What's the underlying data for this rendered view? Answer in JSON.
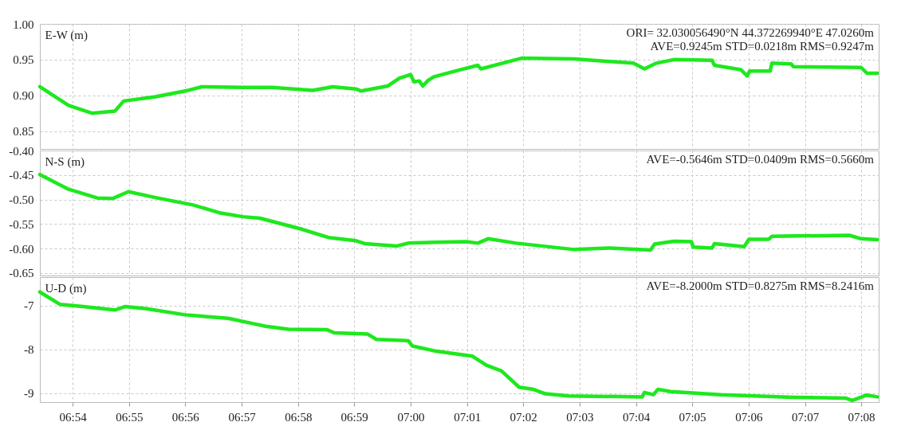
{
  "chart_data": [
    {
      "type": "line",
      "ylabel": "E-W (m)",
      "annotations": [
        "ORI= 32.030056490°N  44.372269940°E 47.0260m",
        "AVE=0.9245m STD=0.0218m RMS=0.9247m"
      ],
      "xlim": [
        6.8903,
        7.1385
      ],
      "xticks": [
        {
          "value": 6.9,
          "label": null
        },
        {
          "value": 6.9167,
          "label": null
        },
        {
          "value": 6.9333,
          "label": null
        },
        {
          "value": 6.95,
          "label": null
        },
        {
          "value": 6.9667,
          "label": null
        },
        {
          "value": 6.9833,
          "label": null
        },
        {
          "value": 7,
          "label": null
        },
        {
          "value": 7.0167,
          "label": null
        },
        {
          "value": 7.0333,
          "label": null
        },
        {
          "value": 7.05,
          "label": null
        },
        {
          "value": 7.0667,
          "label": null
        },
        {
          "value": 7.0833,
          "label": null
        },
        {
          "value": 7.1,
          "label": null
        },
        {
          "value": 7.1167,
          "label": null
        },
        {
          "value": 7.1333,
          "label": null
        }
      ],
      "ylim": [
        0.825,
        1.0
      ],
      "yticks": [
        0.85,
        {
          "value": 0.9,
          "label": "0.90"
        },
        0.95,
        {
          "value": 1.0,
          "label": "1.00"
        }
      ],
      "grid": true,
      "tick_labels": "y",
      "marker": "none",
      "line_style": "solid",
      "x": [
        6.8903,
        6.8988,
        6.9057,
        6.9125,
        6.9151,
        6.9245,
        6.9333,
        6.9382,
        6.9503,
        6.959,
        6.971,
        6.9769,
        6.9838,
        6.9854,
        6.9932,
        6.9967,
        7.0,
        7.001,
        7.0026,
        7.0036,
        7.0052,
        7.0069,
        7.014,
        7.0199,
        7.0208,
        7.0328,
        7.0484,
        7.0659,
        7.0692,
        7.0727,
        7.0779,
        7.0892,
        7.0899,
        7.0977,
        7.0996,
        7.1003,
        7.1064,
        7.1069,
        7.1126,
        7.1133,
        7.1333,
        7.135,
        7.1381
      ],
      "series": [
        {
          "color": "#1ee81e",
          "values": [
            0.912,
            0.886,
            0.875,
            0.878,
            0.892,
            0.898,
            0.906,
            0.912,
            0.911,
            0.911,
            0.907,
            0.912,
            0.909,
            0.906,
            0.913,
            0.924,
            0.929,
            0.919,
            0.92,
            0.913,
            0.921,
            0.926,
            0.935,
            0.942,
            0.937,
            0.952,
            0.951,
            0.945,
            0.937,
            0.945,
            0.95,
            0.949,
            0.942,
            0.936,
            0.927,
            0.934,
            0.934,
            0.945,
            0.944,
            0.94,
            0.939,
            0.931,
            0.931
          ]
        }
      ]
    },
    {
      "type": "line",
      "ylabel": "N-S (m)",
      "annotations": [
        "AVE=-0.5646m STD=0.0409m RMS=0.5660m"
      ],
      "xlim": [
        6.8903,
        7.1385
      ],
      "xticks": [
        {
          "value": 6.9,
          "label": null
        },
        {
          "value": 6.9167,
          "label": null
        },
        {
          "value": 6.9333,
          "label": null
        },
        {
          "value": 6.95,
          "label": null
        },
        {
          "value": 6.9667,
          "label": null
        },
        {
          "value": 6.9833,
          "label": null
        },
        {
          "value": 7,
          "label": null
        },
        {
          "value": 7.0167,
          "label": null
        },
        {
          "value": 7.0333,
          "label": null
        },
        {
          "value": 7.05,
          "label": null
        },
        {
          "value": 7.0667,
          "label": null
        },
        {
          "value": 7.0833,
          "label": null
        },
        {
          "value": 7.1,
          "label": null
        },
        {
          "value": 7.1167,
          "label": null
        },
        {
          "value": 7.1333,
          "label": null
        }
      ],
      "ylim": [
        -0.655,
        -0.4
      ],
      "yticks": [
        -0.65,
        {
          "value": -0.6,
          "label": "-0.60"
        },
        -0.55,
        {
          "value": -0.5,
          "label": "-0.50"
        },
        -0.45,
        {
          "value": -0.4,
          "label": "-0.40"
        }
      ],
      "grid": true,
      "tick_labels": "y",
      "marker": "none",
      "line_style": "solid",
      "x": [
        6.8903,
        6.8988,
        6.9073,
        6.9118,
        6.9165,
        6.9245,
        6.9356,
        6.9434,
        6.9503,
        6.9554,
        6.9675,
        6.976,
        6.9838,
        6.9864,
        6.9958,
        6.9993,
        7.0076,
        7.0165,
        7.0199,
        7.0229,
        7.0312,
        7.0484,
        7.0588,
        7.071,
        7.0722,
        7.0779,
        7.0831,
        7.0836,
        7.0892,
        7.0899,
        7.0987,
        7.1001,
        7.106,
        7.1069,
        7.1298,
        7.1333,
        7.1381
      ],
      "series": [
        {
          "color": "#1ee81e",
          "values": [
            -0.449,
            -0.479,
            -0.497,
            -0.498,
            -0.484,
            -0.496,
            -0.511,
            -0.527,
            -0.535,
            -0.538,
            -0.56,
            -0.578,
            -0.584,
            -0.59,
            -0.595,
            -0.589,
            -0.587,
            -0.586,
            -0.589,
            -0.58,
            -0.589,
            -0.602,
            -0.599,
            -0.603,
            -0.591,
            -0.585,
            -0.586,
            -0.597,
            -0.599,
            -0.59,
            -0.596,
            -0.581,
            -0.581,
            -0.575,
            -0.573,
            -0.58,
            -0.582
          ]
        }
      ]
    },
    {
      "type": "line",
      "ylabel": "U-D (m)",
      "annotations": [
        "AVE=-8.2000m STD=0.8275m RMS=8.2416m"
      ],
      "xlim": [
        6.8903,
        7.1385
      ],
      "xticks": [
        {
          "value": 6.9,
          "label": "06:54"
        },
        {
          "value": 6.9167,
          "label": "06:55"
        },
        {
          "value": 6.9333,
          "label": "06:56"
        },
        {
          "value": 6.95,
          "label": "06:57"
        },
        {
          "value": 6.9667,
          "label": "06:58"
        },
        {
          "value": 6.9833,
          "label": "06:59"
        },
        {
          "value": 7,
          "label": "07:00"
        },
        {
          "value": 7.0167,
          "label": "07:01"
        },
        {
          "value": 7.0333,
          "label": "07:02"
        },
        {
          "value": 7.05,
          "label": "07:03"
        },
        {
          "value": 7.0667,
          "label": "07:04"
        },
        {
          "value": 7.0833,
          "label": "07:05"
        },
        {
          "value": 7.1,
          "label": "07:06"
        },
        {
          "value": 7.1167,
          "label": "07:07"
        },
        {
          "value": 7.1333,
          "label": "07:08"
        }
      ],
      "ylim": [
        -9.2,
        -6.35
      ],
      "yticks": [
        -9,
        -8,
        -7
      ],
      "grid": true,
      "marker": "none",
      "line_style": "solid",
      "x": [
        6.8903,
        6.8962,
        6.9031,
        6.9125,
        6.9156,
        6.9219,
        6.9333,
        6.946,
        6.9528,
        6.9571,
        6.9639,
        6.9753,
        6.9774,
        6.9873,
        6.9899,
        6.9993,
        7.0005,
        7.0076,
        7.0182,
        7.0224,
        7.0269,
        7.0321,
        7.0364,
        7.0399,
        7.0467,
        7.0685,
        7.0692,
        7.0718,
        7.0732,
        7.0769,
        7.0918,
        7.1133,
        7.1288,
        7.1307,
        7.135,
        7.1381
      ],
      "series": [
        {
          "color": "#1ee81e",
          "values": [
            -6.69,
            -6.97,
            -7.02,
            -7.1,
            -7.02,
            -7.07,
            -7.21,
            -7.29,
            -7.4,
            -7.47,
            -7.54,
            -7.55,
            -7.62,
            -7.65,
            -7.77,
            -7.8,
            -7.92,
            -8.04,
            -8.15,
            -8.36,
            -8.49,
            -8.86,
            -8.91,
            -9.01,
            -9.06,
            -9.08,
            -8.98,
            -9.03,
            -8.91,
            -8.96,
            -9.03,
            -9.09,
            -9.11,
            -9.16,
            -9.04,
            -9.08
          ]
        }
      ]
    }
  ]
}
